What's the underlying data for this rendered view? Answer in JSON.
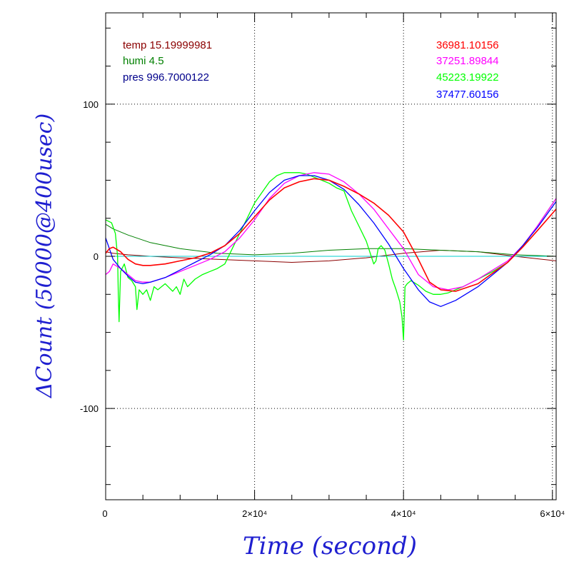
{
  "chart_data": {
    "type": "line",
    "title": "",
    "xlabel": "Time (second)",
    "ylabel": "ΔCount (50000@400usec)",
    "xlim": [
      0,
      60500
    ],
    "ylim": [
      -160,
      160
    ],
    "grid": true,
    "x_ticks": [
      {
        "value": 0,
        "label": "0"
      },
      {
        "value": 20000,
        "label": "2×10⁴"
      },
      {
        "value": 40000,
        "label": "4×10⁴"
      },
      {
        "value": 60000,
        "label": "6×10⁴"
      }
    ],
    "y_ticks": [
      {
        "value": 100,
        "label": "100"
      },
      {
        "value": 0,
        "label": "0"
      },
      {
        "value": -100,
        "label": "-100"
      }
    ],
    "legend_left": [
      {
        "text": "temp 15.19999981",
        "color": "#8b0000"
      },
      {
        "text": "humi 4.5",
        "color": "#008000"
      },
      {
        "text": "pres 996.7000122",
        "color": "#00008b"
      }
    ],
    "legend_right": [
      {
        "text": "36981.10156",
        "color": "#ff0000"
      },
      {
        "text": "37251.89844",
        "color": "#ff00ff"
      },
      {
        "text": "45223.19922",
        "color": "#00ff00"
      },
      {
        "text": "37477.60156",
        "color": "#0000ff"
      }
    ],
    "series": [
      {
        "color": "#8b0000",
        "width": 1,
        "x": [
          0,
          1000,
          3000,
          6000,
          10000,
          15000,
          20000,
          25000,
          30000,
          35000,
          40000,
          45000,
          50000,
          55000,
          60500
        ],
        "y": [
          3,
          2,
          1,
          0,
          -1,
          -2,
          -3,
          -4,
          -3,
          -1,
          2,
          4,
          3,
          0,
          -3
        ]
      },
      {
        "color": "#008000",
        "width": 1,
        "x": [
          0,
          1000,
          3000,
          6000,
          10000,
          15000,
          20000,
          25000,
          30000,
          35000,
          40000,
          45000,
          50000,
          55000,
          60500
        ],
        "y": [
          21,
          18,
          14,
          9,
          5,
          2,
          1,
          2,
          4,
          5,
          5,
          4,
          3,
          1,
          0
        ]
      },
      {
        "color": "#00cccc",
        "width": 1,
        "x": [
          0,
          5000,
          10000,
          20000,
          30000,
          40000,
          50000,
          60500
        ],
        "y": [
          0,
          0,
          0,
          0,
          0,
          0,
          0,
          0
        ]
      },
      {
        "color": "#00ff00",
        "width": 1.3,
        "x": [
          0,
          800,
          1300,
          1600,
          1700,
          1800,
          2000,
          2500,
          3000,
          3500,
          4000,
          4200,
          4500,
          5000,
          5500,
          6000,
          6500,
          7000,
          8000,
          9000,
          9500,
          10000,
          10500,
          11000,
          12000,
          13000,
          14000,
          15000,
          16000,
          17000,
          18000,
          19000,
          20000,
          21000,
          22000,
          23000,
          24000,
          25000,
          26000,
          27000,
          28000,
          29000,
          30000,
          31000,
          32000,
          33000,
          34000,
          35000,
          36000,
          36300,
          36600,
          36800,
          37000,
          37500,
          38000,
          38500,
          39000,
          39500,
          39800,
          40000,
          40200,
          40500,
          41000,
          42000,
          43000,
          44000,
          45000,
          46000,
          48000,
          50000,
          52000,
          54000,
          56000,
          58000,
          60500
        ],
        "y": [
          24,
          22,
          15,
          0,
          -25,
          -43,
          -10,
          -5,
          -14,
          -16,
          -20,
          -35,
          -22,
          -25,
          -22,
          -29,
          -20,
          -22,
          -18,
          -23,
          -20,
          -25,
          -15,
          -20,
          -15,
          -12,
          -10,
          -8,
          -5,
          5,
          15,
          25,
          35,
          42,
          49,
          53,
          55,
          55,
          55,
          54,
          52,
          50,
          48,
          45,
          43,
          30,
          20,
          10,
          -5,
          -3,
          5,
          6,
          7,
          4,
          -5,
          -15,
          -22,
          -30,
          -40,
          -55,
          -20,
          -18,
          -16,
          -19,
          -23,
          -25,
          -25,
          -24,
          -20,
          -15,
          -10,
          -4,
          6,
          20,
          38
        ]
      },
      {
        "color": "#ff00ff",
        "width": 1.3,
        "x": [
          0,
          500,
          1000,
          2000,
          3000,
          4000,
          5000,
          6000,
          8000,
          10000,
          12000,
          14000,
          16000,
          18000,
          20000,
          22000,
          24000,
          26000,
          28000,
          30000,
          32000,
          34000,
          36000,
          38000,
          40000,
          42000,
          44000,
          46000,
          48000,
          50000,
          52000,
          54000,
          56000,
          58000,
          60500
        ],
        "y": [
          -12,
          -10,
          -5,
          -8,
          -12,
          -16,
          -17,
          -17,
          -14,
          -10,
          -6,
          -2,
          3,
          12,
          24,
          38,
          48,
          53,
          55,
          54,
          49,
          41,
          31,
          18,
          5,
          -12,
          -20,
          -22,
          -20,
          -15,
          -9,
          -3,
          7,
          20,
          38
        ]
      },
      {
        "color": "#0000ff",
        "width": 1.3,
        "x": [
          0,
          500,
          1000,
          2000,
          3000,
          4000,
          5000,
          6000,
          8000,
          10000,
          12000,
          14000,
          16000,
          18000,
          20000,
          22000,
          24000,
          26000,
          28000,
          30000,
          32000,
          34000,
          36000,
          38000,
          40000,
          42000,
          43500,
          45000,
          47000,
          50000,
          52000,
          54000,
          56000,
          58000,
          60500
        ],
        "y": [
          12,
          5,
          -2,
          -8,
          -13,
          -17,
          -18,
          -17,
          -14,
          -9,
          -4,
          1,
          7,
          17,
          30,
          42,
          50,
          53,
          53,
          50,
          44,
          34,
          22,
          8,
          -8,
          -22,
          -30,
          -33,
          -29,
          -20,
          -12,
          -4,
          7,
          19,
          36
        ]
      },
      {
        "color": "#ff0000",
        "width": 1.6,
        "x": [
          0,
          500,
          1000,
          2000,
          3000,
          4000,
          5000,
          6000,
          8000,
          10000,
          12000,
          14000,
          16000,
          18000,
          20000,
          22000,
          24000,
          26000,
          28000,
          30000,
          32000,
          34000,
          36000,
          38000,
          40000,
          42000,
          43500,
          45000,
          47000,
          50000,
          52000,
          54000,
          56000,
          58000,
          60500
        ],
        "y": [
          2,
          5,
          6,
          3,
          -2,
          -5,
          -6,
          -6,
          -5,
          -3,
          -1,
          2,
          7,
          15,
          26,
          37,
          45,
          49,
          51,
          50,
          46,
          41,
          35,
          27,
          16,
          -2,
          -17,
          -22,
          -23,
          -18,
          -11,
          -4,
          6,
          17,
          31
        ]
      }
    ]
  }
}
